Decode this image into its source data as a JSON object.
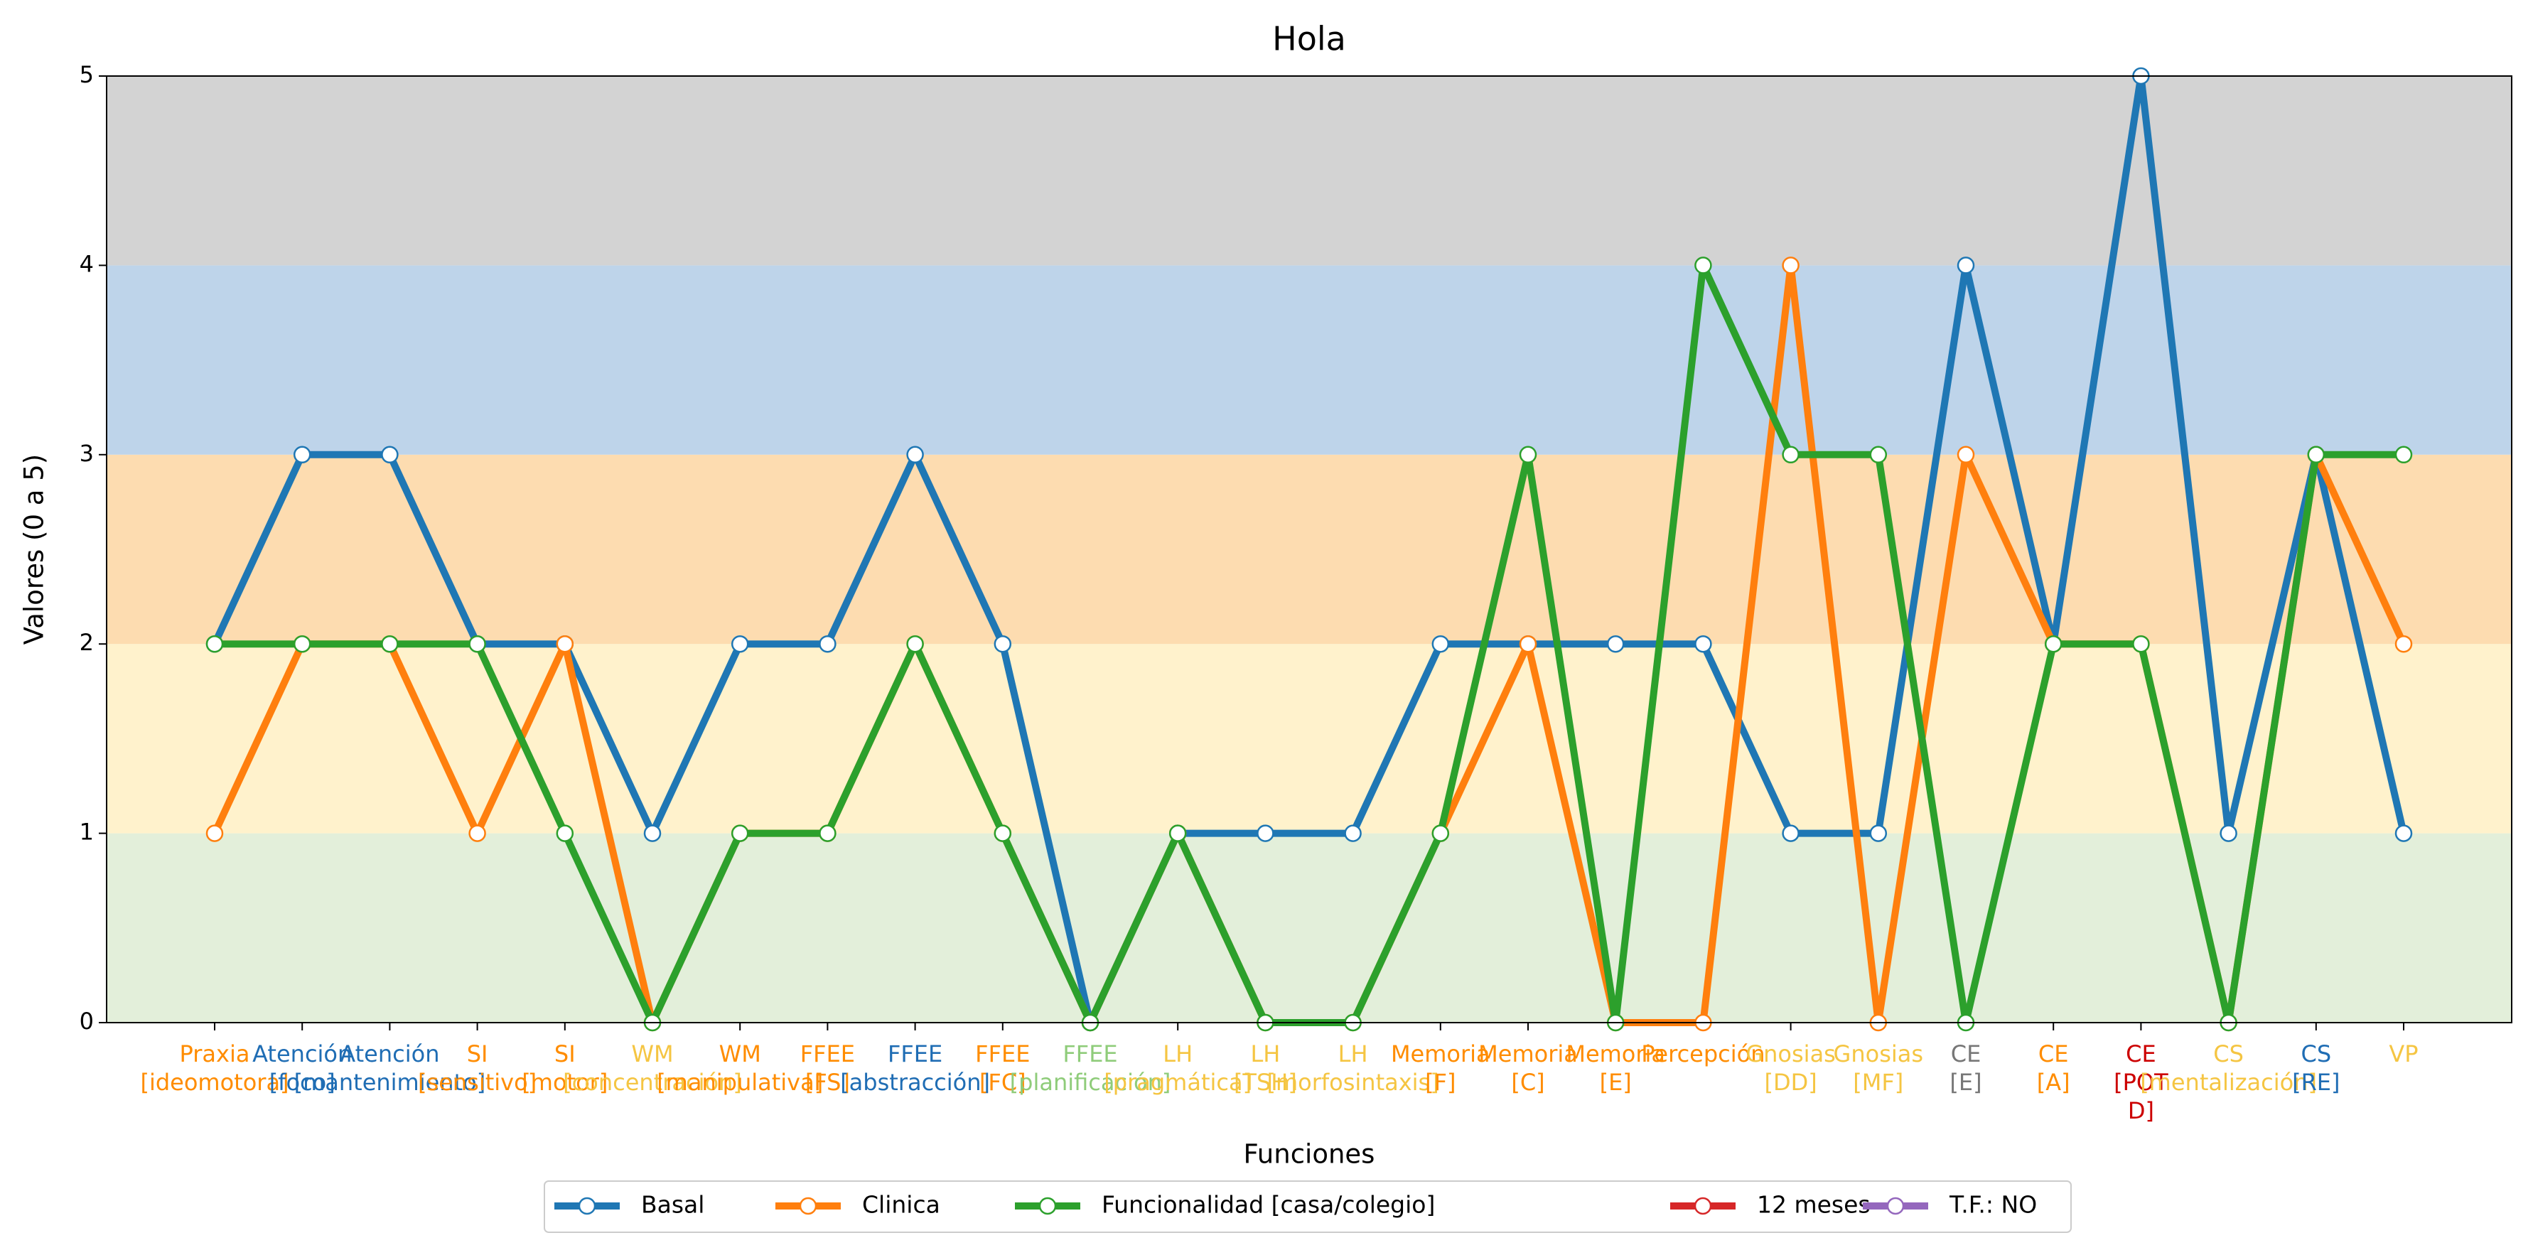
{
  "chart_data": {
    "type": "line",
    "title": "Hola",
    "xlabel": "Funciones",
    "ylabel": "Valores (0 a 5)",
    "categories": [
      "Praxia\n[ideomotora]",
      "Atención\n[foco]",
      "Atención\n[mantenimiento]",
      "SI\n[sensitivo]",
      "SI\n[motor]",
      "WM\n[concentración]",
      "WM\n[manipulativa]",
      "FFEE\n[FS]",
      "FFEE\n[abstracción]",
      "FFEE\n[FC]",
      "FFEE\n[planificación]",
      "LH\n[pragmática]",
      "LH\n[TSH]",
      "LH\n[morfosintaxis]",
      "Memoria\n[F]",
      "Memoria\n[C]",
      "Memoria\n[E]",
      "Percepción",
      "Gnosias\n[DD]",
      "Gnosias\n[MF]",
      "CE\n[E]",
      "CE\n[A]",
      "CE\n[POT\nD]",
      "CS\n[mentalización]",
      "CS\n[RE]",
      "VP"
    ],
    "label_colors": [
      "#ff8c00",
      "#1f6db4",
      "#1f6db4",
      "#ff8c00",
      "#ff8c00",
      "#f5c542",
      "#ff8c00",
      "#ff8c00",
      "#1f6db4",
      "#ff8c00",
      "#8fcc7a",
      "#f5c542",
      "#f5c542",
      "#f5c542",
      "#ff8c00",
      "#ff8c00",
      "#ff8c00",
      "#ff8c00",
      "#f5c542",
      "#f5c542",
      "#777777",
      "#ff8c00",
      "#cc0000",
      "#f5c542",
      "#1f6db4",
      "#f5c542"
    ],
    "series": [
      {
        "name": "Basal",
        "color": "#1f77b4",
        "values": [
          2,
          3,
          3,
          2,
          2,
          1,
          2,
          2,
          3,
          2,
          0,
          1,
          1,
          1,
          2,
          2,
          2,
          2,
          1,
          1,
          4,
          2,
          5,
          1,
          3,
          1
        ]
      },
      {
        "name": "Clinica",
        "color": "#ff7f0e",
        "values": [
          1,
          2,
          2,
          1,
          2,
          0,
          1,
          1,
          2,
          1,
          0,
          1,
          0,
          0,
          1,
          2,
          0,
          0,
          4,
          0,
          3,
          2,
          2,
          0,
          3,
          2
        ]
      },
      {
        "name": "Funcionalidad [casa/colegio]",
        "color": "#2ca02c",
        "values": [
          2,
          2,
          2,
          2,
          1,
          0,
          1,
          1,
          2,
          1,
          0,
          1,
          0,
          0,
          1,
          3,
          0,
          4,
          3,
          3,
          0,
          2,
          2,
          0,
          3,
          3
        ]
      },
      {
        "name": "12 meses",
        "color": "#d62728",
        "values": [
          null,
          null,
          null,
          null,
          null,
          null,
          null,
          null,
          null,
          null,
          null,
          null,
          null,
          null,
          null,
          null,
          null,
          null,
          null,
          null,
          null,
          null,
          null,
          null,
          null,
          null
        ]
      },
      {
        "name": "T.F.: NO",
        "color": "#9467bd",
        "values": [
          null,
          null,
          null,
          null,
          null,
          null,
          null,
          null,
          null,
          null,
          null,
          null,
          null,
          null,
          null,
          null,
          null,
          null,
          null,
          null,
          null,
          null,
          null,
          null,
          null,
          null
        ]
      }
    ],
    "bands": [
      {
        "from": 0,
        "to": 1,
        "color": "#e3efda"
      },
      {
        "from": 1,
        "to": 2,
        "color": "#fff2cc"
      },
      {
        "from": 2,
        "to": 3,
        "color": "#fddcb0"
      },
      {
        "from": 3,
        "to": 4,
        "color": "#bed4ea"
      },
      {
        "from": 4,
        "to": 5,
        "color": "#d3d3d3"
      }
    ],
    "ylim": [
      0,
      5
    ],
    "yticks": [
      0,
      1,
      2,
      3,
      4,
      5
    ],
    "legend": "lower center"
  }
}
